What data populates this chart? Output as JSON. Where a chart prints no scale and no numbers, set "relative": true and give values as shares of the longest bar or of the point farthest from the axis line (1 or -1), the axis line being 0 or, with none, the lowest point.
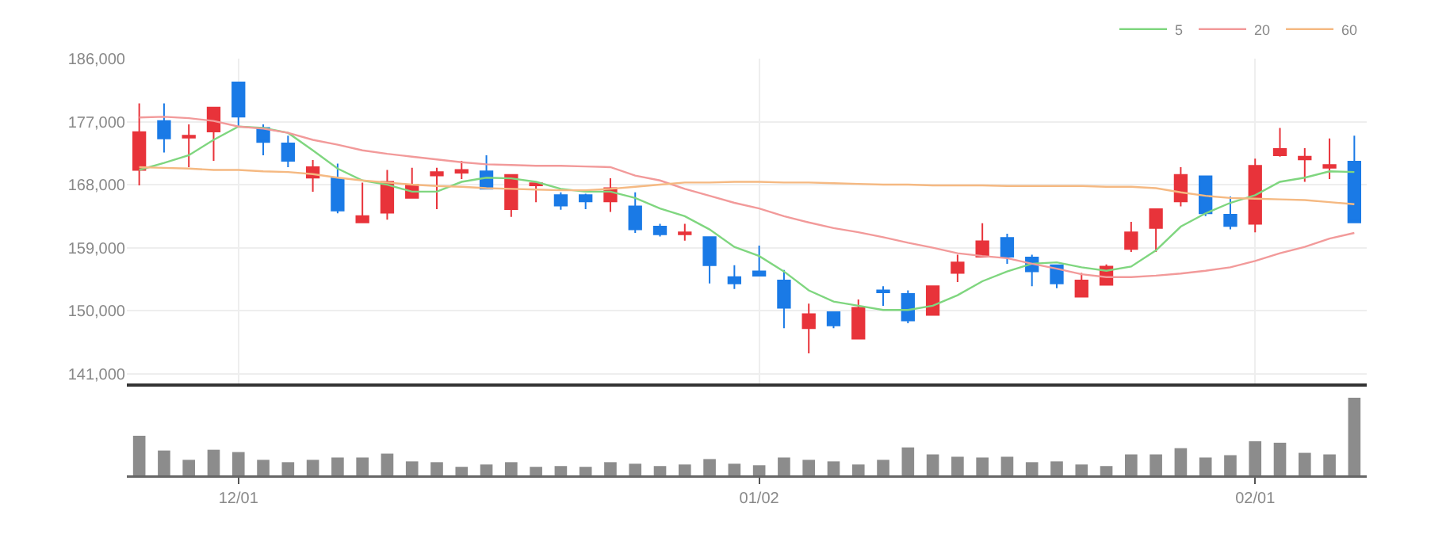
{
  "chart_data": [
    {
      "type": "candlestick",
      "categories": [
        null,
        null,
        null,
        null,
        null,
        null,
        null,
        null,
        null,
        null,
        null,
        null,
        null,
        null,
        null,
        null,
        null,
        null,
        null,
        null,
        null,
        null,
        null,
        null,
        null,
        null,
        null,
        null,
        null,
        null,
        null,
        null,
        null,
        null,
        null,
        null,
        null,
        null,
        null,
        null,
        null,
        null,
        null,
        null,
        null,
        null,
        null,
        null,
        null,
        null
      ],
      "ohlc": [
        [
          170100,
          179600,
          167900,
          175500
        ],
        [
          177100,
          179600,
          172600,
          174600
        ],
        [
          174700,
          176600,
          170500,
          175000
        ],
        [
          175600,
          179000,
          171400,
          179000
        ],
        [
          182600,
          182600,
          176300,
          177700
        ],
        [
          176100,
          176600,
          172200,
          174100
        ],
        [
          173900,
          175000,
          170500,
          171400
        ],
        [
          169000,
          171500,
          167000,
          170500
        ],
        [
          168900,
          171000,
          163900,
          164300
        ],
        [
          162600,
          168300,
          162600,
          163500
        ],
        [
          164000,
          170100,
          163000,
          168400
        ],
        [
          166100,
          170400,
          166100,
          168000
        ],
        [
          169300,
          170400,
          164500,
          169800
        ],
        [
          169700,
          171400,
          168800,
          170100
        ],
        [
          169900,
          172200,
          167300,
          167400
        ],
        [
          164500,
          169400,
          163400,
          169400
        ],
        [
          167900,
          168200,
          165500,
          168200
        ],
        [
          166500,
          166900,
          164400,
          165000
        ],
        [
          166500,
          166700,
          164500,
          165600
        ],
        [
          165600,
          168900,
          164100,
          167500
        ],
        [
          164900,
          166900,
          161100,
          161600
        ],
        [
          162000,
          162400,
          160600,
          160900
        ],
        [
          160900,
          162400,
          160000,
          161200
        ],
        [
          160500,
          160500,
          153900,
          156500
        ],
        [
          154800,
          156500,
          153100,
          153900
        ],
        [
          155600,
          159300,
          155000,
          155000
        ],
        [
          154300,
          155800,
          147500,
          150400
        ],
        [
          147500,
          151000,
          143900,
          149500
        ],
        [
          149800,
          149800,
          147500,
          147900
        ],
        [
          146000,
          151600,
          146000,
          150400
        ],
        [
          152900,
          153500,
          150700,
          152600
        ],
        [
          152400,
          152900,
          148200,
          148600
        ],
        [
          149400,
          153500,
          149400,
          153500
        ],
        [
          155400,
          158000,
          154100,
          156900
        ],
        [
          157700,
          162500,
          157700,
          159900
        ],
        [
          160400,
          161000,
          156700,
          157700
        ],
        [
          157600,
          158000,
          153500,
          155600
        ],
        [
          156500,
          156500,
          153200,
          153900
        ],
        [
          152000,
          155400,
          152000,
          154300
        ],
        [
          153700,
          156600,
          153700,
          156300
        ],
        [
          158800,
          162700,
          158400,
          161200
        ],
        [
          161800,
          164500,
          158400,
          164500
        ],
        [
          165600,
          170500,
          164900,
          169400
        ],
        [
          169200,
          169300,
          163500,
          163900
        ],
        [
          163700,
          166300,
          161600,
          162100
        ],
        [
          162400,
          171700,
          161200,
          170700
        ],
        [
          172200,
          176100,
          172000,
          173100
        ],
        [
          171600,
          173200,
          168400,
          172000
        ],
        [
          170400,
          174600,
          168800,
          170800
        ],
        [
          171300,
          175000,
          162600,
          162600
        ]
      ],
      "colors": [
        "#e8333a",
        "#1a7ae6",
        "#e8333a",
        "#e8333a",
        "#1a7ae6",
        "#1a7ae6",
        "#1a7ae6",
        "#e8333a",
        "#1a7ae6",
        "#e8333a",
        "#e8333a",
        "#e8333a",
        "#e8333a",
        "#e8333a",
        "#1a7ae6",
        "#e8333a",
        "#e8333a",
        "#1a7ae6",
        "#1a7ae6",
        "#e8333a",
        "#1a7ae6",
        "#1a7ae6",
        "#e8333a",
        "#1a7ae6",
        "#1a7ae6",
        "#1a7ae6",
        "#1a7ae6",
        "#e8333a",
        "#1a7ae6",
        "#e8333a",
        "#1a7ae6",
        "#1a7ae6",
        "#e8333a",
        "#e8333a",
        "#e8333a",
        "#1a7ae6",
        "#1a7ae6",
        "#1a7ae6",
        "#e8333a",
        "#e8333a",
        "#e8333a",
        "#e8333a",
        "#e8333a",
        "#1a7ae6",
        "#1a7ae6",
        "#e8333a",
        "#e8333a",
        "#e8333a",
        "#e8333a",
        "#1a7ae6"
      ],
      "series": [
        {
          "name": "5",
          "type": "line",
          "color": "#7fd67f",
          "values": [
            170100,
            171100,
            172200,
            174400,
            176300,
            176100,
            175400,
            172900,
            170300,
            168600,
            168000,
            167000,
            167000,
            168400,
            169000,
            168900,
            168400,
            167400,
            167000,
            167000,
            166100,
            164600,
            163500,
            161600,
            159100,
            157800,
            155600,
            152900,
            151300,
            150700,
            150100,
            150100,
            150700,
            152200,
            154200,
            155600,
            156700,
            156900,
            156200,
            155700,
            156300,
            158600,
            162000,
            163900,
            165400,
            166500,
            168400,
            169000,
            169900,
            169800
          ]
        },
        {
          "name": "20",
          "type": "line",
          "color": "#f29a9a",
          "values": [
            177600,
            177700,
            177500,
            177100,
            176300,
            176000,
            175400,
            174400,
            173700,
            172900,
            172400,
            172000,
            171600,
            171200,
            170900,
            170800,
            170700,
            170700,
            170600,
            170500,
            169300,
            168600,
            167400,
            166400,
            165400,
            164600,
            163500,
            162600,
            161800,
            161200,
            160500,
            159700,
            159000,
            158200,
            157800,
            157500,
            156700,
            156000,
            155200,
            154800,
            154800,
            155000,
            155300,
            155700,
            156200,
            157100,
            158200,
            159100,
            160300,
            161100
          ]
        },
        {
          "name": "60",
          "type": "line",
          "color": "#f5b982",
          "values": [
            170500,
            170400,
            170300,
            170100,
            170100,
            169900,
            169800,
            169500,
            169000,
            168600,
            168300,
            168000,
            167800,
            167700,
            167500,
            167400,
            167300,
            167200,
            167200,
            167400,
            167700,
            168000,
            168300,
            168300,
            168400,
            168400,
            168300,
            168300,
            168200,
            168100,
            168000,
            168000,
            167900,
            167900,
            167900,
            167800,
            167800,
            167800,
            167800,
            167700,
            167700,
            167500,
            166900,
            166400,
            166100,
            166000,
            165900,
            165800,
            165500,
            165200
          ]
        }
      ],
      "ylim": [
        139600,
        186000
      ],
      "yticks": [
        {
          "value": 141000,
          "label": "141,000"
        },
        {
          "value": 150000,
          "label": "150,000"
        },
        {
          "value": 159000,
          "label": "159,000"
        },
        {
          "value": 168000,
          "label": "168,000"
        },
        {
          "value": 177000,
          "label": "177,000"
        },
        {
          "value": 186000,
          "label": "186,000"
        }
      ],
      "grid": true,
      "legend": "top right",
      "tick_labels": "y"
    },
    {
      "type": "bar",
      "relative": true,
      "color": "#8c8c8c",
      "tick_labels": "x",
      "categories": [
        null,
        null,
        null,
        null,
        "12/01",
        null,
        null,
        null,
        null,
        null,
        null,
        null,
        null,
        null,
        null,
        null,
        null,
        null,
        null,
        null,
        null,
        null,
        null,
        null,
        null,
        "01/02",
        null,
        null,
        null,
        null,
        null,
        null,
        null,
        null,
        null,
        null,
        null,
        null,
        null,
        null,
        null,
        null,
        null,
        null,
        null,
        "02/01",
        null,
        null,
        null,
        null
      ],
      "values": [
        0.51,
        0.32,
        0.2,
        0.33,
        0.3,
        0.2,
        0.17,
        0.2,
        0.23,
        0.23,
        0.28,
        0.18,
        0.17,
        0.11,
        0.14,
        0.17,
        0.11,
        0.12,
        0.11,
        0.17,
        0.15,
        0.12,
        0.14,
        0.21,
        0.15,
        0.13,
        0.23,
        0.2,
        0.18,
        0.14,
        0.2,
        0.36,
        0.27,
        0.24,
        0.23,
        0.24,
        0.17,
        0.18,
        0.14,
        0.12,
        0.27,
        0.27,
        0.35,
        0.23,
        0.26,
        0.44,
        0.42,
        0.29,
        0.27,
        1
      ]
    }
  ]
}
